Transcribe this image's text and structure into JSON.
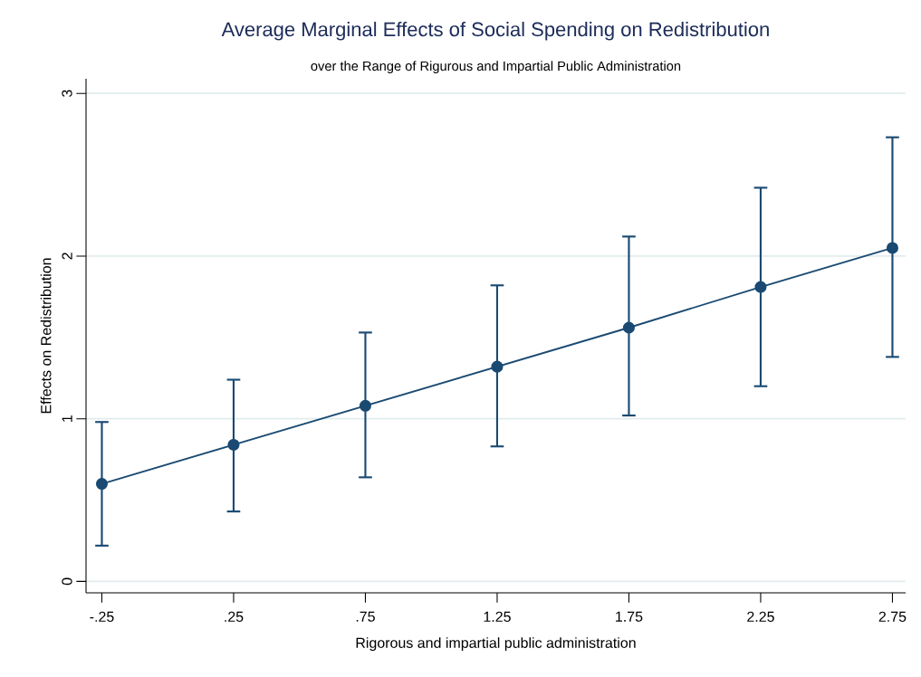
{
  "chart_data": {
    "type": "line",
    "title": "Average Marginal Effects of Social Spending on Redistribution",
    "subtitle": "over the Range of Rigurous and Impartial Public Administration",
    "xlabel": "Rigorous and impartial public administration",
    "ylabel": "Effects on Redistribution",
    "x": [
      -0.25,
      0.25,
      0.75,
      1.25,
      1.75,
      2.25,
      2.75
    ],
    "series": [
      {
        "color": "#1a4a72",
        "values": [
          0.6,
          0.84,
          1.08,
          1.32,
          1.56,
          1.81,
          2.05
        ],
        "errors": [
          [
            0.22,
            0.98
          ],
          [
            0.43,
            1.24
          ],
          [
            0.64,
            1.53
          ],
          [
            0.83,
            1.82
          ],
          [
            1.02,
            2.12
          ],
          [
            1.2,
            2.42
          ],
          [
            1.38,
            2.73
          ]
        ]
      }
    ],
    "xlim": [
      -0.31,
      2.8
    ],
    "ylim": [
      -0.07,
      3.09
    ],
    "xticks": [
      {
        "value": -0.25,
        "label": "-.25"
      },
      {
        "value": 0.25,
        "label": ".25"
      },
      {
        "value": 0.75,
        "label": ".75"
      },
      1.25,
      1.75,
      2.25,
      2.75
    ],
    "yticks": [
      0,
      1,
      2,
      3
    ],
    "grid": "y",
    "marker": "circle",
    "line_style": "solid"
  }
}
